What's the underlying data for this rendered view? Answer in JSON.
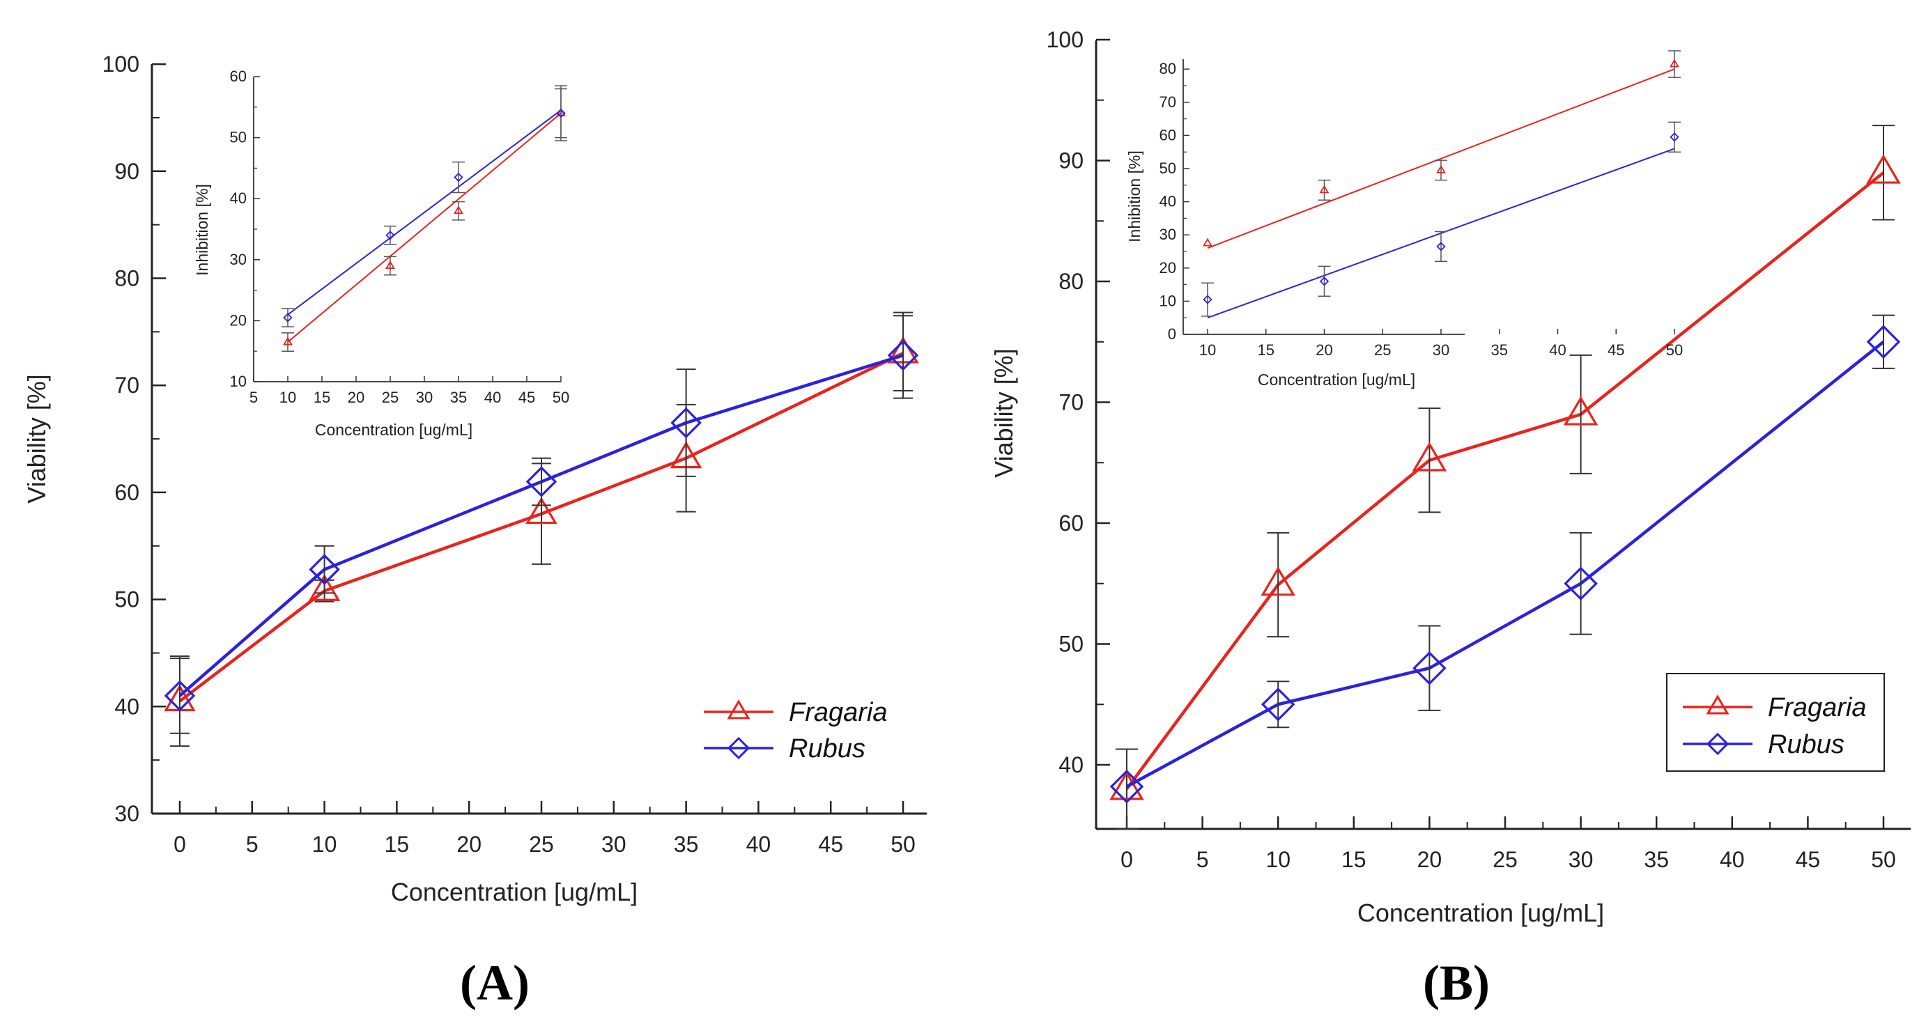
{
  "chart_data": [
    {
      "type": "line",
      "panel_label": "(A)",
      "xlabel": "Concentration [ug/mL]",
      "ylabel": "Viability [%]",
      "xlim": [
        -2,
        52
      ],
      "ylim": [
        30,
        100
      ],
      "x_ticks": [
        0,
        5,
        10,
        15,
        20,
        25,
        30,
        35,
        40,
        45,
        50
      ],
      "x_ticks_labels": [
        "0",
        "5",
        "10",
        "15",
        "20",
        "25",
        "30",
        "35",
        "40",
        "45",
        "50"
      ],
      "y_ticks": [
        30,
        40,
        50,
        60,
        70,
        80,
        90,
        100
      ],
      "y_ticks_labels": [
        "30",
        "40",
        "50",
        "60",
        "70",
        "80",
        "90",
        "100"
      ],
      "legend_position": "bottom-right",
      "series": [
        {
          "name": "Fragaria",
          "color": "#e8241c",
          "marker": "triangle",
          "x": [
            0,
            10,
            25,
            35,
            50
          ],
          "y": [
            40.5,
            50.8,
            58,
            63.2,
            73
          ],
          "err": [
            4.2,
            1,
            4.7,
            5,
            3.5
          ]
        },
        {
          "name": "Rubus",
          "color": "#2a22dc",
          "marker": "diamond",
          "x": [
            0,
            10,
            25,
            35,
            50
          ],
          "y": [
            41,
            52.8,
            61,
            66.5,
            72.8
          ],
          "err": [
            3.5,
            2.2,
            2.2,
            5,
            4
          ]
        }
      ],
      "inset": {
        "type": "scatter",
        "xlabel": "Concentration [ug/mL]",
        "ylabel": "Inhibition [%]",
        "xlim": [
          5,
          50
        ],
        "ylim": [
          10,
          60
        ],
        "x_ticks": [
          5,
          10,
          15,
          20,
          25,
          30,
          35,
          40,
          45,
          50
        ],
        "x_ticks_labels": [
          "5",
          "10",
          "15",
          "20",
          "25",
          "30",
          "35",
          "40",
          "45",
          "50"
        ],
        "y_ticks": [
          10,
          20,
          30,
          40,
          50,
          60
        ],
        "y_ticks_labels": [
          "10",
          "20",
          "30",
          "40",
          "50",
          "60"
        ],
        "series": [
          {
            "name": "Fragaria",
            "color": "#e8241c",
            "marker": "triangle",
            "x": [
              10,
              25,
              35,
              50
            ],
            "y": [
              16.5,
              29,
              38,
              54
            ],
            "err": [
              1.5,
              1.5,
              1.5,
              4
            ],
            "fit": [
              [
                10,
                16.5
              ],
              [
                50,
                54
              ]
            ]
          },
          {
            "name": "Rubus",
            "color": "#2a22dc",
            "marker": "diamond",
            "x": [
              10,
              25,
              35,
              50
            ],
            "y": [
              20.5,
              34,
              43.5,
              54
            ],
            "err": [
              1.5,
              1.5,
              2.5,
              4.5
            ],
            "fit": [
              [
                10,
                21
              ],
              [
                50,
                54.5
              ]
            ]
          }
        ]
      }
    },
    {
      "type": "line",
      "panel_label": "(B)",
      "xlabel": "Concentration [ug/mL]",
      "ylabel": "Viability [%]",
      "xlim": [
        -2,
        52
      ],
      "ylim": [
        35,
        100
      ],
      "x_ticks": [
        0,
        5,
        10,
        15,
        20,
        25,
        30,
        35,
        40,
        45,
        50
      ],
      "x_ticks_labels": [
        "0",
        "5",
        "10",
        "15",
        "20",
        "25",
        "30",
        "35",
        "40",
        "45",
        "50"
      ],
      "y_ticks": [
        40,
        50,
        60,
        70,
        80,
        90,
        100
      ],
      "y_ticks_labels": [
        "40",
        "50",
        "60",
        "70",
        "80",
        "90",
        "100"
      ],
      "legend_position": "bottom-right",
      "series": [
        {
          "name": "Fragaria",
          "color": "#e8241c",
          "marker": "triangle",
          "x": [
            0,
            10,
            20,
            30,
            50
          ],
          "y": [
            38,
            54.9,
            65.2,
            69,
            89
          ],
          "err": [
            3.3,
            4.3,
            4.3,
            4.9,
            3.9
          ]
        },
        {
          "name": "Rubus",
          "color": "#2a22dc",
          "marker": "diamond",
          "x": [
            0,
            10,
            20,
            30,
            50
          ],
          "y": [
            38.2,
            45,
            48,
            55,
            75
          ],
          "err": [
            0,
            1.9,
            3.5,
            4.2,
            2.2
          ]
        }
      ],
      "inset": {
        "type": "scatter",
        "xlabel": "Concentration [ug/mL]",
        "ylabel": "Inhibition [%]",
        "xlim": [
          8,
          50
        ],
        "ylim": [
          0,
          85
        ],
        "x_ticks": [
          10,
          15,
          20,
          25,
          30,
          35,
          40,
          45,
          50
        ],
        "x_ticks_labels": [
          "10",
          "15",
          "20",
          "25",
          "30",
          "35",
          "40",
          "45",
          "50"
        ],
        "y_ticks": [
          0,
          10,
          20,
          30,
          40,
          50,
          60,
          70,
          80
        ],
        "y_ticks_labels": [
          "0",
          "10",
          "20",
          "30",
          "40",
          "50",
          "60",
          "70",
          "80"
        ],
        "series": [
          {
            "name": "Fragaria",
            "color": "#e8241c",
            "marker": "triangle",
            "x": [
              10,
              20,
              30,
              50
            ],
            "y": [
              27.5,
              43.5,
              49.5,
              81.5
            ],
            "err": [
              0,
              3,
              3,
              4
            ]
          },
          {
            "name": "Rubus",
            "color": "#2a22dc",
            "marker": "diamond",
            "x": [
              10,
              20,
              30,
              50
            ],
            "y": [
              10.5,
              16,
              26.5,
              59.5
            ],
            "err": [
              5,
              4.5,
              4.5,
              4.5
            ]
          }
        ],
        "fits": [
          {
            "color": "#e8241c",
            "points": [
              [
                10,
                26
              ],
              [
                50,
                80
              ]
            ]
          },
          {
            "color": "#2a22dc",
            "points": [
              [
                10,
                5
              ],
              [
                50,
                56
              ]
            ]
          }
        ]
      }
    }
  ]
}
